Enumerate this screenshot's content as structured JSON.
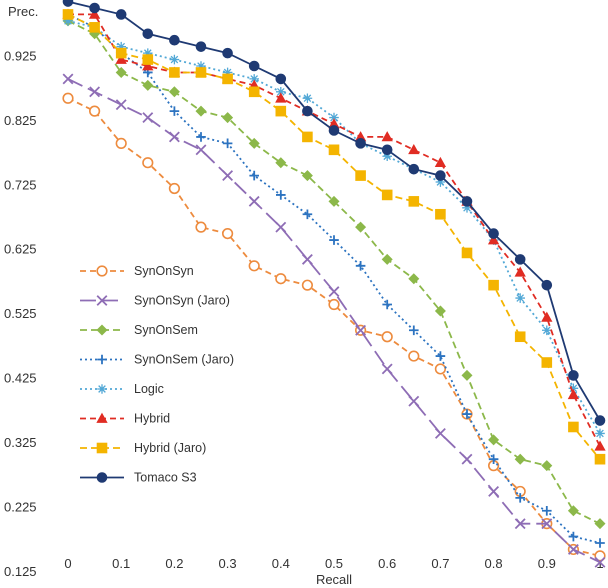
{
  "chart_data": {
    "type": "line",
    "title": "",
    "xlabel": "Recall",
    "ylabel": "Prec.",
    "xlim": [
      0,
      1
    ],
    "ylim": [
      0.125,
      1.0
    ],
    "x_ticks": [
      "0",
      "0.1",
      "0.2",
      "0.3",
      "0.4",
      "0.5",
      "0.6",
      "0.7",
      "0.8",
      "0.9",
      "1"
    ],
    "y_ticks": [
      "0.125",
      "0.225",
      "0.325",
      "0.425",
      "0.525",
      "0.625",
      "0.725",
      "0.825",
      "0.925"
    ],
    "grid": false,
    "legend_position": "bottom-left",
    "x": [
      0,
      0.05,
      0.1,
      0.15,
      0.2,
      0.25,
      0.3,
      0.35,
      0.4,
      0.45,
      0.5,
      0.55,
      0.6,
      0.65,
      0.7,
      0.75,
      0.8,
      0.85,
      0.9,
      0.95,
      1.0
    ],
    "series": [
      {
        "name": "SynOnSyn",
        "color": "#ED8B3E",
        "dash": "6,4",
        "marker": "circle-open",
        "values": [
          0.86,
          0.84,
          0.79,
          0.76,
          0.72,
          0.66,
          0.65,
          0.6,
          0.58,
          0.57,
          0.54,
          0.5,
          0.49,
          0.46,
          0.44,
          0.37,
          0.29,
          0.25,
          0.2,
          0.16,
          0.15
        ]
      },
      {
        "name": "SynOnSyn (Jaro)",
        "color": "#8E6DB5",
        "dash": "16,6",
        "marker": "x",
        "values": [
          0.89,
          0.87,
          0.85,
          0.83,
          0.8,
          0.78,
          0.74,
          0.7,
          0.66,
          0.61,
          0.56,
          0.5,
          0.44,
          0.39,
          0.34,
          0.3,
          0.25,
          0.2,
          0.2,
          0.16,
          0.14
        ]
      },
      {
        "name": "SynOnSem",
        "color": "#8CB84A",
        "dash": "7,4",
        "marker": "diamond",
        "values": [
          0.98,
          0.96,
          0.9,
          0.88,
          0.87,
          0.84,
          0.83,
          0.79,
          0.76,
          0.74,
          0.7,
          0.66,
          0.61,
          0.58,
          0.53,
          0.43,
          0.33,
          0.3,
          0.29,
          0.22,
          0.2
        ]
      },
      {
        "name": "SynOnSem (Jaro)",
        "color": "#2C73C0",
        "dash": "2,3",
        "marker": "plus",
        "values": [
          0.99,
          0.97,
          0.93,
          0.9,
          0.84,
          0.8,
          0.79,
          0.74,
          0.71,
          0.68,
          0.64,
          0.6,
          0.54,
          0.5,
          0.46,
          0.37,
          0.3,
          0.24,
          0.22,
          0.18,
          0.17
        ]
      },
      {
        "name": "Logic",
        "color": "#52A8D6",
        "dash": "2,3",
        "marker": "asterisk",
        "values": [
          0.98,
          0.97,
          0.94,
          0.93,
          0.92,
          0.91,
          0.9,
          0.89,
          0.87,
          0.86,
          0.83,
          0.79,
          0.77,
          0.75,
          0.73,
          0.69,
          0.64,
          0.55,
          0.5,
          0.41,
          0.34
        ]
      },
      {
        "name": "Hybrid",
        "color": "#E02C23",
        "dash": "6,4",
        "marker": "triangle",
        "values": [
          0.99,
          0.99,
          0.92,
          0.91,
          0.9,
          0.9,
          0.89,
          0.88,
          0.86,
          0.84,
          0.82,
          0.8,
          0.8,
          0.78,
          0.76,
          0.7,
          0.64,
          0.59,
          0.52,
          0.4,
          0.32
        ]
      },
      {
        "name": "Hybrid (Jaro)",
        "color": "#F4B400",
        "dash": "7,4",
        "marker": "square",
        "values": [
          0.99,
          0.97,
          0.93,
          0.92,
          0.9,
          0.9,
          0.89,
          0.87,
          0.84,
          0.8,
          0.78,
          0.74,
          0.71,
          0.7,
          0.68,
          0.62,
          0.57,
          0.49,
          0.45,
          0.35,
          0.3
        ]
      },
      {
        "name": "Tomaco S3",
        "color": "#1F3A73",
        "dash": "",
        "marker": "circle-filled",
        "values": [
          1.01,
          1.0,
          0.99,
          0.96,
          0.95,
          0.94,
          0.93,
          0.91,
          0.89,
          0.84,
          0.81,
          0.79,
          0.78,
          0.75,
          0.74,
          0.7,
          0.65,
          0.61,
          0.57,
          0.43,
          0.36
        ]
      }
    ]
  }
}
